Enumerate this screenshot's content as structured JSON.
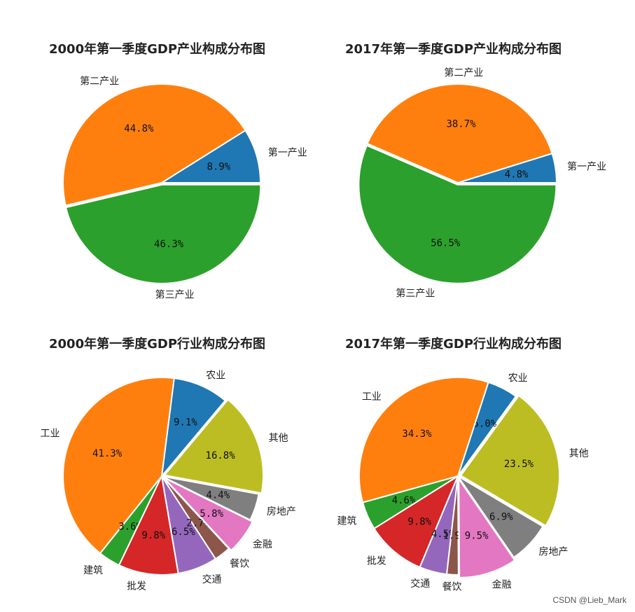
{
  "colors": {
    "blue": "#1f77b4",
    "orange": "#ff7f0e",
    "green": "#2ca02c",
    "red": "#d62728",
    "purple": "#9467bd",
    "brown": "#8c564b",
    "pink": "#e377c2",
    "gray": "#7f7f7f",
    "olive": "#bcbd22"
  },
  "watermark": "CSDN @Lieb_Mark",
  "chart_data": [
    {
      "type": "pie",
      "title": "2000年第一季度GDP产业构成分布图",
      "start_angle": 0,
      "slices": [
        {
          "label": "第一产业",
          "value": 8.9,
          "pct_label": "8.9%",
          "color": "#1f77b4",
          "explode": 0
        },
        {
          "label": "第二产业",
          "value": 44.8,
          "pct_label": "44.8%",
          "color": "#ff7f0e",
          "explode": 0
        },
        {
          "label": "第三产业",
          "value": 46.3,
          "pct_label": "46.3%",
          "color": "#2ca02c",
          "explode": 0.02
        }
      ]
    },
    {
      "type": "pie",
      "title": "2017年第一季度GDP产业构成分布图",
      "start_angle": 0,
      "slices": [
        {
          "label": "第一产业",
          "value": 4.8,
          "pct_label": "4.8%",
          "color": "#1f77b4",
          "explode": 0
        },
        {
          "label": "第二产业",
          "value": 38.7,
          "pct_label": "38.7%",
          "color": "#ff7f0e",
          "explode": 0
        },
        {
          "label": "第三产业",
          "value": 56.5,
          "pct_label": "56.5%",
          "color": "#2ca02c",
          "explode": 0.02
        }
      ]
    },
    {
      "type": "pie",
      "title": "2000年第一季度GDP行业构成分布图",
      "start_angle": 50,
      "slices": [
        {
          "label": "农业",
          "value": 9.1,
          "pct_label": "9.1%",
          "color": "#1f77b4",
          "explode": 0
        },
        {
          "label": "工业",
          "value": 41.3,
          "pct_label": "41.3%",
          "color": "#ff7f0e",
          "explode": 0
        },
        {
          "label": "建筑",
          "value": 3.6,
          "pct_label": "3.6%",
          "color": "#2ca02c",
          "explode": 0
        },
        {
          "label": "批发",
          "value": 9.8,
          "pct_label": "9.8%",
          "color": "#d62728",
          "explode": 0
        },
        {
          "label": "交通",
          "value": 6.5,
          "pct_label": "6.5%",
          "color": "#9467bd",
          "explode": 0
        },
        {
          "label": "餐饮",
          "value": 2.7,
          "pct_label": "2.7%",
          "color": "#8c564b",
          "explode": 0
        },
        {
          "label": "金融",
          "value": 5.8,
          "pct_label": "5.8%",
          "color": "#e377c2",
          "explode": 0.03
        },
        {
          "label": "房地产",
          "value": 4.4,
          "pct_label": "4.4%",
          "color": "#7f7f7f",
          "explode": 0
        },
        {
          "label": "其他",
          "value": 16.8,
          "pct_label": "16.8%",
          "color": "#bcbd22",
          "explode": 0.03
        }
      ]
    },
    {
      "type": "pie",
      "title": "2017年第一季度GDP行业构成分布图",
      "start_angle": 54,
      "slices": [
        {
          "label": "农业",
          "value": 5.0,
          "pct_label": "5.0%",
          "color": "#1f77b4",
          "explode": 0
        },
        {
          "label": "工业",
          "value": 34.3,
          "pct_label": "34.3%",
          "color": "#ff7f0e",
          "explode": 0
        },
        {
          "label": "建筑",
          "value": 4.6,
          "pct_label": "4.6%",
          "color": "#2ca02c",
          "explode": 0
        },
        {
          "label": "批发",
          "value": 9.8,
          "pct_label": "9.8%",
          "color": "#d62728",
          "explode": 0
        },
        {
          "label": "交通",
          "value": 4.5,
          "pct_label": "4.5%",
          "color": "#9467bd",
          "explode": 0
        },
        {
          "label": "餐饮",
          "value": 1.9,
          "pct_label": "1.9%",
          "color": "#8c564b",
          "explode": 0
        },
        {
          "label": "金融",
          "value": 9.5,
          "pct_label": "9.5%",
          "color": "#e377c2",
          "explode": 0.03
        },
        {
          "label": "房地产",
          "value": 6.9,
          "pct_label": "6.9%",
          "color": "#7f7f7f",
          "explode": 0
        },
        {
          "label": "其他",
          "value": 23.5,
          "pct_label": "23.5%",
          "color": "#bcbd22",
          "explode": 0.03
        }
      ]
    }
  ]
}
